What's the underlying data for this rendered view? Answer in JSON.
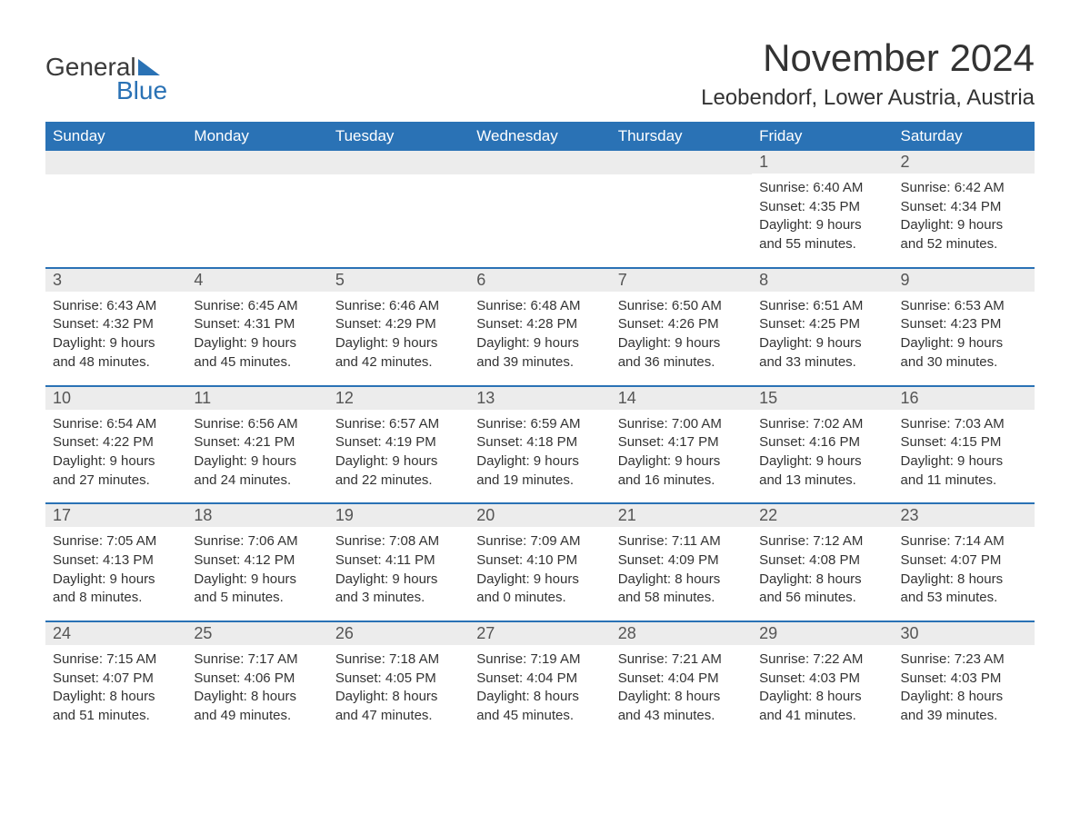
{
  "logo": {
    "word1": "General",
    "word2": "Blue",
    "triangle_color": "#2a72b5"
  },
  "title": "November 2024",
  "location": "Leobendorf, Lower Austria, Austria",
  "columns": [
    "Sunday",
    "Monday",
    "Tuesday",
    "Wednesday",
    "Thursday",
    "Friday",
    "Saturday"
  ],
  "colors": {
    "header_bg": "#2a72b5",
    "header_text": "#ffffff",
    "daynum_bg": "#ececec",
    "daynum_text": "#555555",
    "body_text": "#333333",
    "week_border": "#2a72b5",
    "page_bg": "#ffffff"
  },
  "typography": {
    "title_fontsize": 42,
    "location_fontsize": 24,
    "header_fontsize": 17,
    "daynum_fontsize": 18,
    "body_fontsize": 15
  },
  "weeks": [
    [
      null,
      null,
      null,
      null,
      null,
      {
        "num": "1",
        "sunrise": "Sunrise: 6:40 AM",
        "sunset": "Sunset: 4:35 PM",
        "daylight1": "Daylight: 9 hours",
        "daylight2": "and 55 minutes."
      },
      {
        "num": "2",
        "sunrise": "Sunrise: 6:42 AM",
        "sunset": "Sunset: 4:34 PM",
        "daylight1": "Daylight: 9 hours",
        "daylight2": "and 52 minutes."
      }
    ],
    [
      {
        "num": "3",
        "sunrise": "Sunrise: 6:43 AM",
        "sunset": "Sunset: 4:32 PM",
        "daylight1": "Daylight: 9 hours",
        "daylight2": "and 48 minutes."
      },
      {
        "num": "4",
        "sunrise": "Sunrise: 6:45 AM",
        "sunset": "Sunset: 4:31 PM",
        "daylight1": "Daylight: 9 hours",
        "daylight2": "and 45 minutes."
      },
      {
        "num": "5",
        "sunrise": "Sunrise: 6:46 AM",
        "sunset": "Sunset: 4:29 PM",
        "daylight1": "Daylight: 9 hours",
        "daylight2": "and 42 minutes."
      },
      {
        "num": "6",
        "sunrise": "Sunrise: 6:48 AM",
        "sunset": "Sunset: 4:28 PM",
        "daylight1": "Daylight: 9 hours",
        "daylight2": "and 39 minutes."
      },
      {
        "num": "7",
        "sunrise": "Sunrise: 6:50 AM",
        "sunset": "Sunset: 4:26 PM",
        "daylight1": "Daylight: 9 hours",
        "daylight2": "and 36 minutes."
      },
      {
        "num": "8",
        "sunrise": "Sunrise: 6:51 AM",
        "sunset": "Sunset: 4:25 PM",
        "daylight1": "Daylight: 9 hours",
        "daylight2": "and 33 minutes."
      },
      {
        "num": "9",
        "sunrise": "Sunrise: 6:53 AM",
        "sunset": "Sunset: 4:23 PM",
        "daylight1": "Daylight: 9 hours",
        "daylight2": "and 30 minutes."
      }
    ],
    [
      {
        "num": "10",
        "sunrise": "Sunrise: 6:54 AM",
        "sunset": "Sunset: 4:22 PM",
        "daylight1": "Daylight: 9 hours",
        "daylight2": "and 27 minutes."
      },
      {
        "num": "11",
        "sunrise": "Sunrise: 6:56 AM",
        "sunset": "Sunset: 4:21 PM",
        "daylight1": "Daylight: 9 hours",
        "daylight2": "and 24 minutes."
      },
      {
        "num": "12",
        "sunrise": "Sunrise: 6:57 AM",
        "sunset": "Sunset: 4:19 PM",
        "daylight1": "Daylight: 9 hours",
        "daylight2": "and 22 minutes."
      },
      {
        "num": "13",
        "sunrise": "Sunrise: 6:59 AM",
        "sunset": "Sunset: 4:18 PM",
        "daylight1": "Daylight: 9 hours",
        "daylight2": "and 19 minutes."
      },
      {
        "num": "14",
        "sunrise": "Sunrise: 7:00 AM",
        "sunset": "Sunset: 4:17 PM",
        "daylight1": "Daylight: 9 hours",
        "daylight2": "and 16 minutes."
      },
      {
        "num": "15",
        "sunrise": "Sunrise: 7:02 AM",
        "sunset": "Sunset: 4:16 PM",
        "daylight1": "Daylight: 9 hours",
        "daylight2": "and 13 minutes."
      },
      {
        "num": "16",
        "sunrise": "Sunrise: 7:03 AM",
        "sunset": "Sunset: 4:15 PM",
        "daylight1": "Daylight: 9 hours",
        "daylight2": "and 11 minutes."
      }
    ],
    [
      {
        "num": "17",
        "sunrise": "Sunrise: 7:05 AM",
        "sunset": "Sunset: 4:13 PM",
        "daylight1": "Daylight: 9 hours",
        "daylight2": "and 8 minutes."
      },
      {
        "num": "18",
        "sunrise": "Sunrise: 7:06 AM",
        "sunset": "Sunset: 4:12 PM",
        "daylight1": "Daylight: 9 hours",
        "daylight2": "and 5 minutes."
      },
      {
        "num": "19",
        "sunrise": "Sunrise: 7:08 AM",
        "sunset": "Sunset: 4:11 PM",
        "daylight1": "Daylight: 9 hours",
        "daylight2": "and 3 minutes."
      },
      {
        "num": "20",
        "sunrise": "Sunrise: 7:09 AM",
        "sunset": "Sunset: 4:10 PM",
        "daylight1": "Daylight: 9 hours",
        "daylight2": "and 0 minutes."
      },
      {
        "num": "21",
        "sunrise": "Sunrise: 7:11 AM",
        "sunset": "Sunset: 4:09 PM",
        "daylight1": "Daylight: 8 hours",
        "daylight2": "and 58 minutes."
      },
      {
        "num": "22",
        "sunrise": "Sunrise: 7:12 AM",
        "sunset": "Sunset: 4:08 PM",
        "daylight1": "Daylight: 8 hours",
        "daylight2": "and 56 minutes."
      },
      {
        "num": "23",
        "sunrise": "Sunrise: 7:14 AM",
        "sunset": "Sunset: 4:07 PM",
        "daylight1": "Daylight: 8 hours",
        "daylight2": "and 53 minutes."
      }
    ],
    [
      {
        "num": "24",
        "sunrise": "Sunrise: 7:15 AM",
        "sunset": "Sunset: 4:07 PM",
        "daylight1": "Daylight: 8 hours",
        "daylight2": "and 51 minutes."
      },
      {
        "num": "25",
        "sunrise": "Sunrise: 7:17 AM",
        "sunset": "Sunset: 4:06 PM",
        "daylight1": "Daylight: 8 hours",
        "daylight2": "and 49 minutes."
      },
      {
        "num": "26",
        "sunrise": "Sunrise: 7:18 AM",
        "sunset": "Sunset: 4:05 PM",
        "daylight1": "Daylight: 8 hours",
        "daylight2": "and 47 minutes."
      },
      {
        "num": "27",
        "sunrise": "Sunrise: 7:19 AM",
        "sunset": "Sunset: 4:04 PM",
        "daylight1": "Daylight: 8 hours",
        "daylight2": "and 45 minutes."
      },
      {
        "num": "28",
        "sunrise": "Sunrise: 7:21 AM",
        "sunset": "Sunset: 4:04 PM",
        "daylight1": "Daylight: 8 hours",
        "daylight2": "and 43 minutes."
      },
      {
        "num": "29",
        "sunrise": "Sunrise: 7:22 AM",
        "sunset": "Sunset: 4:03 PM",
        "daylight1": "Daylight: 8 hours",
        "daylight2": "and 41 minutes."
      },
      {
        "num": "30",
        "sunrise": "Sunrise: 7:23 AM",
        "sunset": "Sunset: 4:03 PM",
        "daylight1": "Daylight: 8 hours",
        "daylight2": "and 39 minutes."
      }
    ]
  ]
}
